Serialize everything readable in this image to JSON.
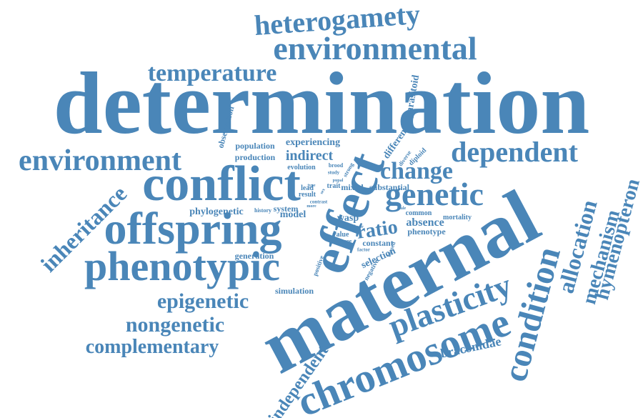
{
  "colors": {
    "word": "#4a86b8",
    "background": "#ffffff"
  },
  "words": {
    "determination": "determination",
    "maternal": "maternal",
    "effect": "effect",
    "conflict": "conflict",
    "offspring": "offspring",
    "phenotypic": "phenotypic",
    "environmental": "environmental",
    "environment": "environment",
    "heterogamety": "heterogamety",
    "temperature": "temperature",
    "dependent": "dependent",
    "genetic": "genetic",
    "change": "change",
    "chromosome": "chromosome",
    "condition": "condition",
    "plasticity": "plasticity",
    "allocation": "allocation",
    "mechanism": "mechanism",
    "hymenopteron": "hymenopteron",
    "inheritance": "inheritance",
    "epigenetic": "epigenetic",
    "nongenetic": "nongenetic",
    "complementary": "complementary",
    "independent": "independent",
    "braconidae": "braconidae",
    "ratio": "ratio",
    "indirect": "indirect",
    "parasitoid": "parasitoid",
    "observation": "observation",
    "population": "population",
    "experiencing": "experiencing",
    "production": "production",
    "evolution": "evolution",
    "different": "different",
    "diverse": "diverse",
    "diploid": "diploid",
    "brood": "brood",
    "study": "study",
    "strong": "strong",
    "lead": "lead",
    "result": "result",
    "trait": "trait",
    "mixed": "mixed",
    "substantial": "substantial",
    "phylogenetic": "phylogenetic",
    "history": "history",
    "system": "system",
    "model": "model",
    "wasp": "wasp",
    "absence": "absence",
    "common": "common",
    "mortality": "mortality",
    "phenotype": "phenotype",
    "value": "value",
    "scope": "scope",
    "constant": "constant",
    "factor": "factor",
    "selection": "selection",
    "negative": "negative",
    "biased": "biased",
    "positive": "positive",
    "generation": "generation",
    "simulation": "simulation",
    "contrast": "contrast",
    "more": "more",
    "pupal": "pupal",
    "type": "type",
    "male": "male",
    "favor": "favor",
    "sex": "sex"
  }
}
